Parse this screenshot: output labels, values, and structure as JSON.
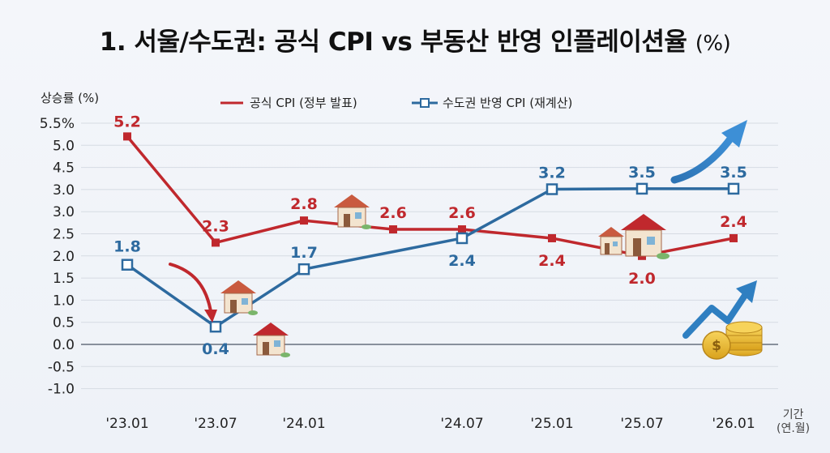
{
  "title": {
    "main": "1. 서울/수도권: 공식 CPI vs 부동산 반영 인플레이션율",
    "unit": "(%)"
  },
  "y_axis_title": "상승률 (%)",
  "x_axis_title": "기간",
  "x_axis_sub": "(연.월)",
  "colors": {
    "official": "#c0282d",
    "metro": "#2d6a9f",
    "grid": "#d6dbe3",
    "arrow": "#2f7fc1"
  },
  "icons": [
    "house-icon",
    "coins-icon",
    "trend-arrow-icon",
    "down-arrow-icon"
  ],
  "chart_data": {
    "type": "line",
    "title": "1. 서울/수도권: 공식 CPI vs 부동산 반영 인플레이션율 (%)",
    "xlabel": "기간 (연.월)",
    "ylabel": "상승률 (%)",
    "y_tick_labels": [
      "5.5%",
      "5.0",
      "4.5",
      "3.0",
      "3.0",
      "2.5",
      "2.0",
      "1.5",
      "1.0",
      "0.5",
      "0.0",
      "-0.5",
      "-1.0"
    ],
    "x_tick_labels": [
      "'23.01",
      "'23.07",
      "'24.01",
      "'24.07",
      "'25.01",
      "'25.07",
      "'26.01"
    ],
    "grid": true,
    "legend_position": "top-center",
    "series": [
      {
        "name": "공식 CPI (정부 발표)",
        "marker": "filled-square",
        "points": [
          {
            "x": "'23.01",
            "y": 5.2,
            "label": "5.2"
          },
          {
            "x": "'23.07",
            "y": 2.3,
            "label": "2.3"
          },
          {
            "x": "'24.01",
            "y": 2.8,
            "label": "2.8"
          },
          {
            "x": "'24.04",
            "y": 2.6,
            "label": "2.6"
          },
          {
            "x": "'24.07",
            "y": 2.6,
            "label": "2.6"
          },
          {
            "x": "'25.01",
            "y": 2.4,
            "label": "2.4"
          },
          {
            "x": "'25.07",
            "y": 2.0,
            "label": "2.0"
          },
          {
            "x": "'26.01",
            "y": 2.4,
            "label": "2.4"
          }
        ]
      },
      {
        "name": "수도권 반영 CPI (재계산)",
        "marker": "hollow-square",
        "points": [
          {
            "x": "'23.01",
            "y": 1.8,
            "label": "1.8"
          },
          {
            "x": "'23.07",
            "y": 0.4,
            "label": "0.4"
          },
          {
            "x": "'24.01",
            "y": 1.7,
            "label": "1.7"
          },
          {
            "x": "'24.07",
            "y": 2.4,
            "label": "2.4"
          },
          {
            "x": "'25.01",
            "y": 3.2,
            "label": "3.2"
          },
          {
            "x": "'25.07",
            "y": 3.5,
            "label": "3.5"
          },
          {
            "x": "'26.01",
            "y": 3.5,
            "label": "3.5"
          }
        ]
      }
    ]
  }
}
